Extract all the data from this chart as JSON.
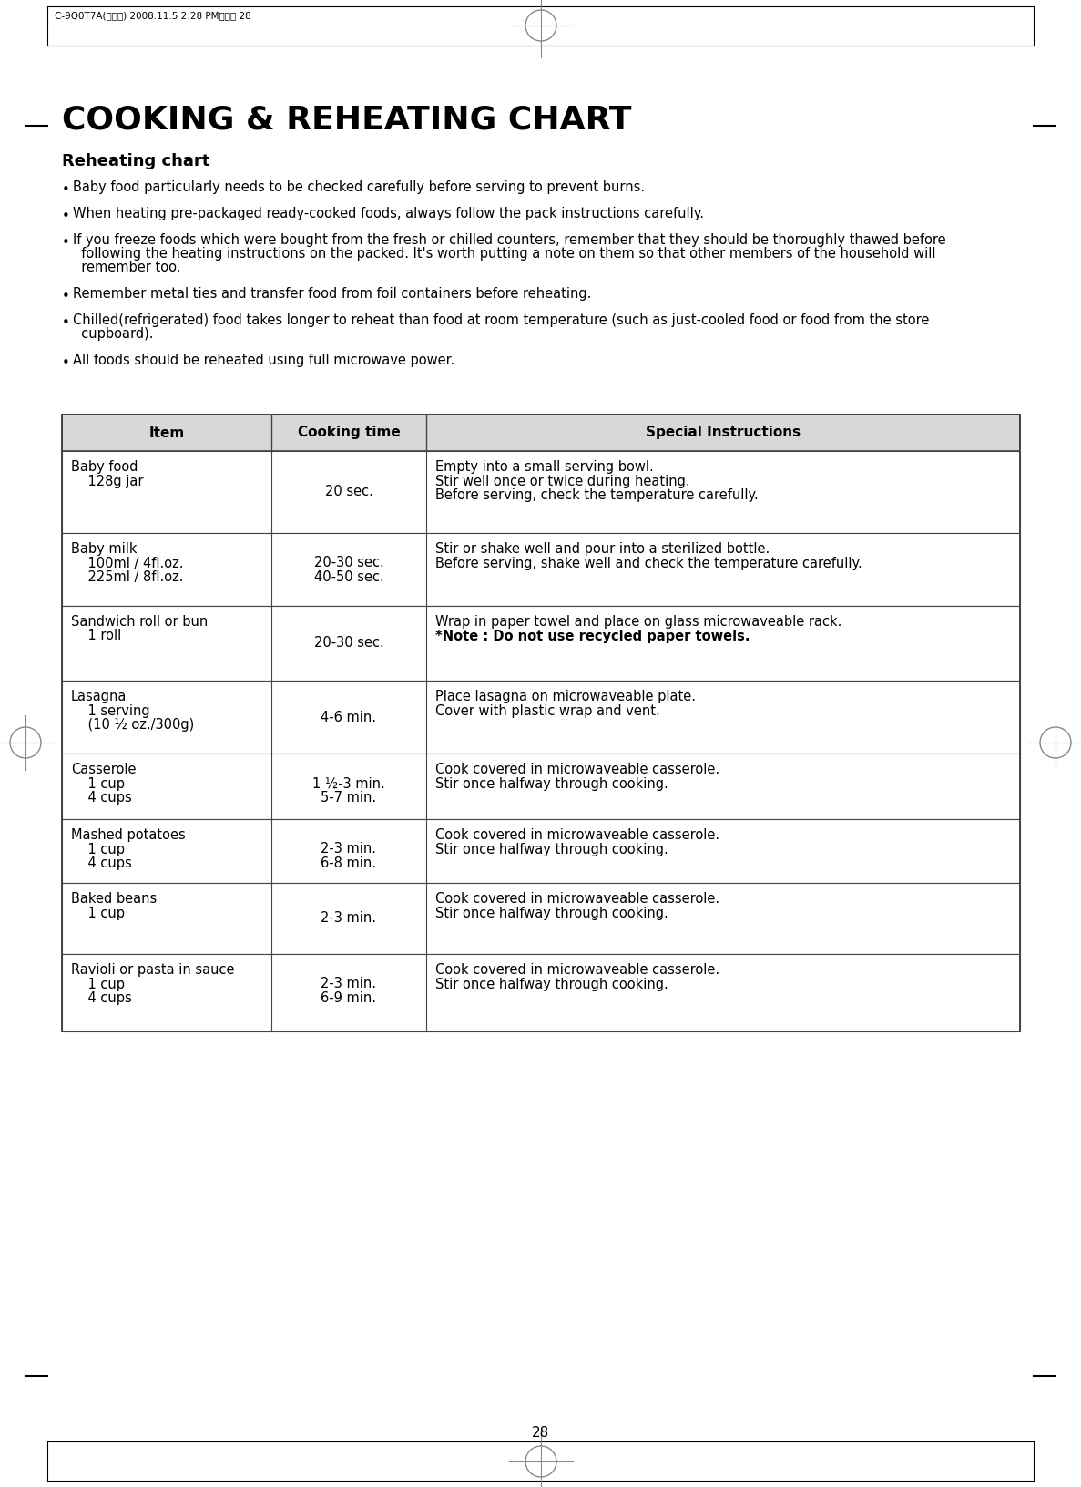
{
  "page_header": "C-9Q0T7A(영기본) 2008.11.5 2:28 PM페이지 28",
  "main_title": "COOKING & REHEATING CHART",
  "section_title": "Reheating chart",
  "bullets": [
    {
      "text": "Baby food particularly needs to be checked carefully before serving to prevent burns.",
      "lines": [
        "Baby food particularly needs to be checked carefully before serving to prevent burns."
      ]
    },
    {
      "text": "When heating pre-packaged ready-cooked foods, always follow the pack instructions carefully.",
      "lines": [
        "When heating pre-packaged ready-cooked foods, always follow the pack instructions carefully."
      ]
    },
    {
      "text": "If you freeze foods which were bought from the fresh or chilled counters, remember that they should be thoroughly thawed before following the heating instructions on the packed.",
      "lines": [
        "If you freeze foods which were bought from the fresh or chilled counters, remember that they should be thoroughly thawed before",
        "  following the heating instructions on the packed. It's worth putting a note on them so that other members of the household will",
        "  remember too."
      ]
    },
    {
      "text": "Remember metal ties and transfer food from foil containers before reheating.",
      "lines": [
        "Remember metal ties and transfer food from foil containers before reheating."
      ]
    },
    {
      "text": "Chilled(refrigerated) food takes longer to reheat than food at room temperature (such as just-cooled food or food from the store cupboard).",
      "lines": [
        "Chilled(refrigerated) food takes longer to reheat than food at room temperature (such as just-cooled food or food from the store",
        "  cupboard)."
      ]
    },
    {
      "text": "All foods should be reheated using full microwave power.",
      "lines": [
        "All foods should be reheated using full microwave power."
      ]
    }
  ],
  "col_headers": [
    "Item",
    "Cooking time",
    "Special Instructions"
  ],
  "table_rows": [
    {
      "item_main": "Baby food",
      "item_sub": [
        "    128g jar"
      ],
      "cooking_time": [
        "20 sec."
      ],
      "cooking_time_align": "center_single",
      "instructions": [
        "Empty into a small serving bowl.",
        "Stir well once or twice during heating.",
        "Before serving, check the temperature carefully."
      ],
      "note_bold": []
    },
    {
      "item_main": "Baby milk",
      "item_sub": [
        "    100ml / 4fl.oz.",
        "    225ml / 8fl.oz."
      ],
      "cooking_time": [
        "20-30 sec.",
        "40-50 sec."
      ],
      "cooking_time_align": "with_subs",
      "instructions": [
        "Stir or shake well and pour into a sterilized bottle.",
        "Before serving, shake well and check the temperature carefully."
      ],
      "note_bold": []
    },
    {
      "item_main": "Sandwich roll or bun",
      "item_sub": [
        "    1 roll"
      ],
      "cooking_time": [
        "20-30 sec."
      ],
      "cooking_time_align": "center_single",
      "instructions": [
        "Wrap in paper towel and place on glass microwaveable rack.",
        "*Note : Do not use recycled paper towels."
      ],
      "note_bold": [
        "*Note : Do not use recycled paper towels."
      ]
    },
    {
      "item_main": "Lasagna",
      "item_sub": [
        "    1 serving",
        "    (10 ½ oz./300g)"
      ],
      "cooking_time": [
        "4-6 min."
      ],
      "cooking_time_align": "center_single",
      "instructions": [
        "Place lasagna on microwaveable plate.",
        "Cover with plastic wrap and vent."
      ],
      "note_bold": []
    },
    {
      "item_main": "Casserole",
      "item_sub": [
        "    1 cup",
        "    4 cups"
      ],
      "cooking_time": [
        "1 ½-3 min.",
        "5-7 min."
      ],
      "cooking_time_align": "with_subs",
      "instructions": [
        "Cook covered in microwaveable casserole.",
        "Stir once halfway through cooking."
      ],
      "note_bold": []
    },
    {
      "item_main": "Mashed potatoes",
      "item_sub": [
        "    1 cup",
        "    4 cups"
      ],
      "cooking_time": [
        "2-3 min.",
        "6-8 min."
      ],
      "cooking_time_align": "with_subs",
      "instructions": [
        "Cook covered in microwaveable casserole.",
        "Stir once halfway through cooking."
      ],
      "note_bold": []
    },
    {
      "item_main": "Baked beans",
      "item_sub": [
        "    1 cup"
      ],
      "cooking_time": [
        "2-3 min."
      ],
      "cooking_time_align": "center_single",
      "instructions": [
        "Cook covered in microwaveable casserole.",
        "Stir once halfway through cooking."
      ],
      "note_bold": []
    },
    {
      "item_main": "Ravioli or pasta in sauce",
      "item_sub": [
        "    1 cup",
        "    4 cups"
      ],
      "cooking_time": [
        "2-3 min.",
        "6-9 min."
      ],
      "cooking_time_align": "with_subs",
      "instructions": [
        "Cook covered in microwaveable casserole.",
        "Stir once halfway through cooking."
      ],
      "note_bold": []
    }
  ],
  "page_number": "28",
  "background_color": "#ffffff",
  "header_bg_color": "#d8d8d8",
  "table_border_color": "#444444",
  "text_color": "#000000",
  "main_title_fontsize": 26,
  "section_fontsize": 13,
  "body_fontsize": 10.5,
  "table_header_fontsize": 11,
  "table_body_fontsize": 10.5
}
